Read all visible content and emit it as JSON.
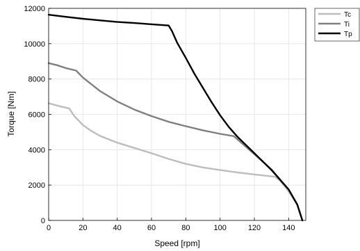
{
  "chart_data": {
    "type": "line",
    "xlabel": "Speed [rpm]",
    "ylabel": "Torque [Nm]",
    "xlim": [
      0,
      150
    ],
    "ylim": [
      0,
      12000
    ],
    "xticks": [
      "0",
      "20",
      "40",
      "60",
      "80",
      "100",
      "120",
      "140"
    ],
    "yticks": [
      "0",
      "2000",
      "4000",
      "6000",
      "8000",
      "10000",
      "12000"
    ],
    "grid": true,
    "legend_position": "outside-top-right",
    "series": [
      {
        "name": "Tc",
        "color": "#bdbdbd",
        "x": [
          0,
          5,
          12,
          15,
          20,
          25,
          30,
          40,
          50,
          60,
          70,
          80,
          90,
          100,
          110,
          120,
          132,
          135,
          140,
          145,
          148
        ],
        "y": [
          6630,
          6500,
          6330,
          5900,
          5400,
          5050,
          4780,
          4400,
          4100,
          3800,
          3480,
          3200,
          3000,
          2850,
          2720,
          2600,
          2470,
          2250,
          1650,
          900,
          0
        ]
      },
      {
        "name": "Ti",
        "color": "#808080",
        "x": [
          0,
          5,
          10,
          16,
          20,
          30,
          40,
          50,
          60,
          70,
          80,
          90,
          100,
          108,
          110,
          120,
          130,
          140,
          145,
          148
        ],
        "y": [
          8900,
          8780,
          8620,
          8480,
          8080,
          7320,
          6730,
          6270,
          5900,
          5580,
          5330,
          5100,
          4900,
          4770,
          4600,
          3750,
          2880,
          1750,
          900,
          0
        ]
      },
      {
        "name": "Tp",
        "color": "#000000",
        "x": [
          0,
          10,
          20,
          30,
          40,
          50,
          60,
          70,
          72,
          75,
          80,
          85,
          90,
          95,
          100,
          105,
          110,
          120,
          130,
          140,
          145,
          148
        ],
        "y": [
          11640,
          11520,
          11410,
          11320,
          11230,
          11170,
          11100,
          11030,
          10700,
          10050,
          9200,
          8300,
          7500,
          6700,
          5950,
          5300,
          4750,
          3800,
          2850,
          1750,
          900,
          0
        ]
      }
    ]
  }
}
